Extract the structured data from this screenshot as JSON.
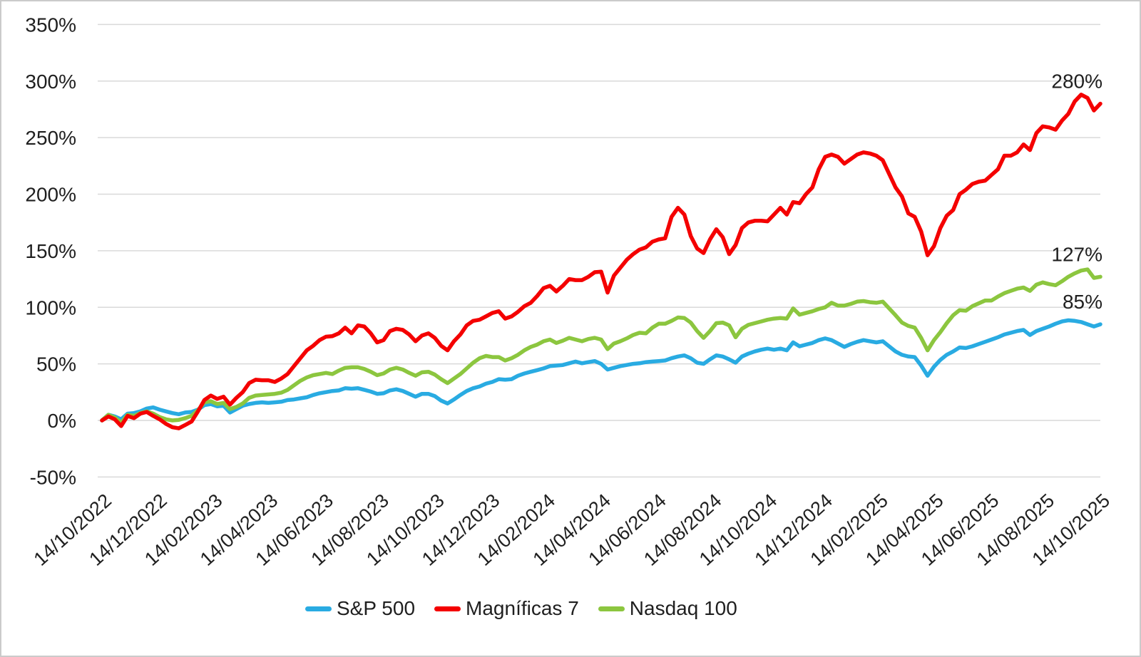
{
  "chart_data": {
    "type": "line",
    "title": "",
    "unit": "%",
    "sampling": "weekly cumulative return since 14/10/2022",
    "grid": "horizontal",
    "legend_position": "bottom-center",
    "x": {
      "tick_labels": [
        "14/10/2022",
        "14/12/2022",
        "14/02/2023",
        "14/04/2023",
        "14/06/2023",
        "14/08/2023",
        "14/10/2023",
        "14/12/2023",
        "14/02/2024",
        "14/04/2024",
        "14/06/2024",
        "14/08/2024",
        "14/10/2024",
        "14/12/2024",
        "14/02/2025",
        "14/04/2025",
        "14/06/2025",
        "14/08/2025",
        "14/10/2025"
      ]
    },
    "y": {
      "min": -50,
      "max": 350,
      "tick_step": 50,
      "tick_labels": [
        "350%",
        "300%",
        "250%",
        "200%",
        "150%",
        "100%",
        "50%",
        "0%",
        "-50%"
      ]
    },
    "draw_order": [
      0,
      2,
      1
    ],
    "series": [
      {
        "name": "S&P 500",
        "color": "#29ABE2",
        "end_label": "85%",
        "values": [
          0,
          5,
          3.5,
          1,
          6,
          6.5,
          8,
          10.5,
          11.5,
          9.5,
          8,
          6.5,
          5.5,
          7,
          7.5,
          9.5,
          13.5,
          14.5,
          12.5,
          13,
          7,
          10,
          13,
          14.5,
          15.5,
          16,
          15.5,
          16,
          16.5,
          18,
          18.5,
          19.5,
          20.5,
          22.5,
          24,
          25,
          26,
          26.5,
          28.5,
          28,
          28.5,
          27,
          25.5,
          23.5,
          24,
          26.5,
          27.5,
          26,
          23.5,
          21,
          23.5,
          23.5,
          21.5,
          17.5,
          15,
          18.5,
          22.5,
          26,
          28.5,
          30,
          32.5,
          34,
          36.5,
          36,
          36.5,
          39.5,
          41.5,
          43,
          44.5,
          46,
          48,
          48.5,
          49,
          50.5,
          52,
          50.5,
          51.5,
          52.5,
          50,
          45,
          46.5,
          48,
          49,
          50,
          50.5,
          51.5,
          52,
          52.5,
          53,
          55,
          56.5,
          57.5,
          55,
          51,
          50,
          54,
          57.5,
          56.5,
          54,
          51,
          56.5,
          59,
          61,
          62.5,
          63.5,
          62.5,
          63.5,
          62,
          69,
          65.5,
          67,
          68.5,
          71,
          72.5,
          71,
          68,
          65,
          67.5,
          69.5,
          71,
          70,
          69,
          70,
          65.5,
          61,
          58,
          56.5,
          56,
          48.5,
          39.5,
          47.5,
          53.5,
          58,
          61,
          64.5,
          64,
          65.5,
          67.5,
          69.5,
          71.5,
          73.5,
          76,
          77.5,
          79,
          80,
          75.5,
          79,
          81,
          83,
          85.5,
          87.5,
          88.5,
          88,
          87,
          85,
          83,
          85
        ]
      },
      {
        "name": "Magníficas 7",
        "color": "#F40000",
        "end_label": "280%",
        "values": [
          0,
          3.5,
          1,
          -5,
          4,
          2,
          6,
          7.5,
          4,
          1,
          -3,
          -6,
          -7,
          -4,
          -1,
          8,
          18,
          22,
          19,
          21,
          14,
          20,
          25,
          33,
          36,
          35.5,
          35.5,
          34,
          37,
          41,
          48,
          55,
          62,
          66,
          71,
          74,
          74.5,
          77,
          82,
          77,
          84,
          83,
          77,
          69,
          71,
          79,
          81,
          80,
          76,
          70,
          75,
          77,
          73,
          66,
          62,
          70,
          76,
          84,
          88,
          89,
          92,
          95,
          96.5,
          90,
          92,
          96,
          101,
          104,
          110,
          117,
          119,
          114,
          119,
          125,
          124,
          124,
          127,
          131,
          131.5,
          113,
          128,
          135,
          142,
          147,
          151,
          153,
          158,
          160,
          161,
          180,
          188,
          182,
          163,
          152,
          148,
          160,
          169,
          162,
          147,
          155,
          170,
          175,
          176.5,
          176.5,
          176,
          182,
          188,
          182,
          193,
          192,
          200,
          206,
          222,
          233,
          235,
          233,
          227,
          231,
          235,
          237,
          236,
          234,
          230,
          218,
          206,
          198,
          183,
          180,
          167,
          146,
          154,
          170,
          181,
          186,
          200,
          204,
          209,
          211,
          212,
          217,
          222,
          234,
          234,
          237,
          244,
          239,
          254,
          260,
          259,
          257,
          265,
          271,
          282,
          288,
          285,
          274,
          280
        ]
      },
      {
        "name": "Nasdaq 100",
        "color": "#8CC63F",
        "end_label": "127%",
        "values": [
          0,
          5,
          2.5,
          -2,
          5,
          4,
          6.5,
          8,
          6,
          3,
          1,
          0,
          0.5,
          2,
          4,
          9,
          16,
          17,
          14.5,
          15.5,
          10,
          12,
          15,
          20,
          22,
          22.5,
          23,
          23.5,
          24.5,
          27,
          31,
          35,
          38,
          40,
          41,
          42,
          41,
          44,
          46.5,
          47,
          47,
          45.5,
          43,
          40,
          41.5,
          45,
          46.5,
          45,
          42,
          39.5,
          42.5,
          43,
          40.5,
          36.5,
          33,
          37,
          41,
          46,
          51,
          55,
          57,
          56,
          56,
          53,
          55,
          58,
          62,
          65,
          67,
          70,
          71.5,
          68.5,
          70.5,
          73,
          71.5,
          70,
          72,
          73,
          71.5,
          63,
          68,
          70,
          72.5,
          75.5,
          77.5,
          77,
          82,
          85.5,
          85.5,
          88,
          91,
          90.5,
          86.5,
          79,
          73,
          79,
          86,
          86.5,
          84,
          73.5,
          81,
          84.5,
          86,
          87.5,
          89,
          90,
          90.5,
          90,
          99,
          93.5,
          95,
          96.5,
          98.5,
          100,
          104,
          101.5,
          101.5,
          103,
          105,
          105.5,
          104.5,
          104,
          105,
          99,
          93,
          86.5,
          83.5,
          82,
          73,
          62,
          71,
          78,
          86,
          93,
          97.5,
          97,
          101,
          103.5,
          106,
          106,
          109.5,
          112.5,
          114.5,
          116.5,
          117.5,
          114.5,
          120,
          122,
          120.5,
          119.5,
          123,
          127,
          130,
          132.5,
          133.5,
          126,
          127
        ]
      }
    ]
  },
  "colors": {
    "background": "#FFFFFF",
    "grid": "#D9D9D9",
    "text": "#1F1F1F",
    "border": "#CBCBCB",
    "sp500": "#29ABE2",
    "magnificas7": "#F40000",
    "nasdaq100": "#8CC63F"
  }
}
